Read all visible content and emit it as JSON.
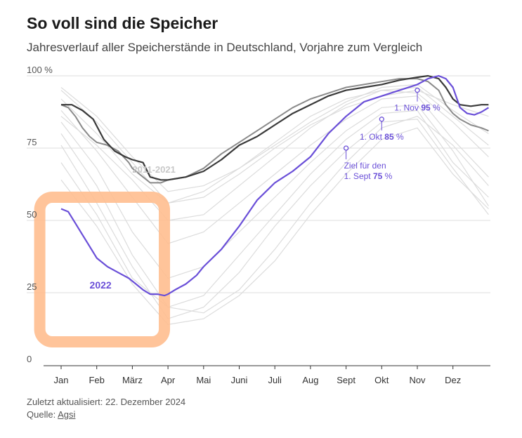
{
  "header": {
    "title": "So voll sind die Speicher",
    "subtitle": "Jahresverlauf aller Speicherstände in Deutschland, Vorjahre zum Vergleich"
  },
  "footer": {
    "updated": "Zuletzt aktualisiert: 22. Dezember 2024",
    "source_label": "Quelle: ",
    "source_link": "Agsi"
  },
  "colors": {
    "current_year": "#6a4fd8",
    "dark_year": "#3a3a3a",
    "mid_year": "#8a8a8a",
    "history": "#dcdcdc",
    "highlight_box": "#ffbe8f",
    "grid": "#dddddd",
    "axis_text": "#555555"
  },
  "chart_data": {
    "type": "line",
    "y_unit": "%",
    "ylim": [
      0,
      100
    ],
    "yticks": [
      "100 %",
      "75",
      "50",
      "25",
      "0"
    ],
    "ytick_values": [
      100,
      75,
      50,
      25,
      0
    ],
    "xlim": [
      0,
      12
    ],
    "months": [
      "Jan",
      "Feb",
      "März",
      "Apr",
      "Mai",
      "Juni",
      "Juli",
      "Aug",
      "Sept",
      "Okt",
      "Nov",
      "Dez"
    ],
    "grid": "horizontal",
    "history_label": "2011-2021",
    "series": [
      {
        "name": "2022",
        "role": "current",
        "x": [
          0.0,
          0.2,
          0.4,
          0.6,
          0.8,
          1.0,
          1.3,
          1.6,
          1.9,
          2.1,
          2.3,
          2.5,
          2.7,
          2.9,
          3.0,
          3.2,
          3.5,
          3.8,
          4.0,
          4.5,
          5.0,
          5.5,
          6.0,
          6.5,
          7.0,
          7.5,
          8.0,
          8.5,
          9.0,
          9.5,
          10.0,
          10.3,
          10.6,
          10.8,
          11.0,
          11.2,
          11.4,
          11.6,
          11.8,
          12.0
        ],
        "y": [
          54,
          53,
          49,
          45,
          41,
          37,
          34,
          32,
          30,
          28,
          26,
          24.5,
          24.5,
          24,
          24.5,
          26,
          28,
          31,
          34,
          40,
          48,
          57,
          63,
          67,
          72,
          80,
          86,
          91,
          93,
          95,
          97,
          99,
          100,
          99,
          96,
          89,
          87,
          86.5,
          87.5,
          89
        ]
      },
      {
        "name": "",
        "role": "dark",
        "x": [
          0.0,
          0.3,
          0.6,
          0.9,
          1.2,
          1.5,
          1.8,
          2.0,
          2.3,
          2.5,
          2.8,
          3.0,
          3.5,
          4.0,
          4.5,
          5.0,
          5.5,
          6.0,
          6.5,
          7.0,
          7.5,
          8.0,
          8.5,
          9.0,
          9.5,
          10.0,
          10.3,
          10.6,
          10.8,
          11.0,
          11.2,
          11.5,
          11.8,
          12.0
        ],
        "y": [
          90,
          90,
          88,
          85,
          78,
          74,
          72,
          71,
          70,
          65,
          64,
          64,
          65,
          67,
          71,
          76,
          79,
          83,
          87,
          90,
          93,
          95,
          96,
          97,
          98.5,
          99.5,
          100,
          99,
          96,
          92,
          90,
          89.5,
          90,
          90
        ]
      },
      {
        "name": "",
        "role": "mid",
        "x": [
          0.0,
          0.2,
          0.4,
          0.6,
          0.8,
          1.0,
          1.3,
          1.6,
          1.9,
          2.0,
          2.3,
          2.5,
          2.8,
          3.0,
          3.5,
          4.0,
          4.5,
          5.0,
          5.5,
          6.0,
          6.5,
          7.0,
          7.5,
          8.0,
          8.5,
          9.0,
          9.5,
          10.0,
          10.3,
          10.6,
          10.8,
          11.0,
          11.2,
          11.5,
          11.8,
          12.0
        ],
        "y": [
          90,
          89,
          86,
          82,
          79,
          77,
          76,
          74,
          70,
          68,
          65,
          63,
          63,
          64,
          65,
          68,
          73,
          77,
          81,
          85,
          89,
          92,
          94,
          96,
          97,
          98,
          99,
          99,
          98,
          95,
          90,
          87,
          85,
          83,
          82,
          81
        ]
      },
      {
        "name": "",
        "role": "history",
        "x": [
          0,
          1,
          2,
          3,
          4,
          5,
          6,
          7,
          8,
          9,
          10,
          11,
          12
        ],
        "y": [
          96,
          86,
          72,
          60,
          62,
          68,
          76,
          84,
          91,
          96,
          97,
          88,
          80
        ]
      },
      {
        "name": "",
        "role": "history",
        "x": [
          0,
          1,
          2,
          3,
          4,
          5,
          6,
          7,
          8,
          9,
          10,
          11,
          12
        ],
        "y": [
          92,
          80,
          66,
          56,
          60,
          68,
          77,
          86,
          92,
          95,
          94,
          84,
          72
        ]
      },
      {
        "name": "",
        "role": "history",
        "x": [
          0,
          1,
          2,
          3,
          4,
          5,
          6,
          7,
          8,
          9,
          10,
          11,
          12
        ],
        "y": [
          88,
          74,
          58,
          42,
          46,
          56,
          66,
          76,
          85,
          92,
          93,
          78,
          65
        ]
      },
      {
        "name": "",
        "role": "history",
        "x": [
          0,
          1,
          2,
          3,
          4,
          5,
          6,
          7,
          8,
          9,
          10,
          11,
          12
        ],
        "y": [
          84,
          68,
          46,
          30,
          34,
          46,
          58,
          70,
          81,
          89,
          90,
          74,
          55
        ]
      },
      {
        "name": "",
        "role": "history",
        "x": [
          0,
          1,
          2,
          3,
          4,
          5,
          6,
          7,
          8,
          9,
          10,
          11,
          12
        ],
        "y": [
          80,
          62,
          38,
          20,
          24,
          38,
          52,
          66,
          78,
          87,
          88,
          70,
          58
        ]
      },
      {
        "name": "",
        "role": "history",
        "x": [
          0,
          1,
          2,
          3,
          4,
          5,
          6,
          7,
          8,
          9,
          10,
          11,
          12
        ],
        "y": [
          76,
          56,
          34,
          16,
          20,
          32,
          48,
          62,
          74,
          84,
          85,
          68,
          52
        ]
      },
      {
        "name": "",
        "role": "history",
        "x": [
          0,
          1,
          2,
          3,
          4,
          5,
          6,
          7,
          8,
          9,
          10,
          11,
          12
        ],
        "y": [
          70,
          52,
          30,
          20,
          18,
          26,
          40,
          56,
          70,
          82,
          86,
          76,
          62
        ]
      },
      {
        "name": "",
        "role": "history",
        "x": [
          0,
          1,
          2,
          3,
          4,
          5,
          6,
          7,
          8,
          9,
          10,
          11,
          12
        ],
        "y": [
          64,
          48,
          28,
          14,
          16,
          24,
          36,
          52,
          66,
          78,
          82,
          66,
          54
        ]
      },
      {
        "name": "",
        "role": "history",
        "x": [
          0,
          1,
          2,
          3,
          4,
          5,
          6,
          7,
          8,
          9,
          10,
          11,
          12
        ],
        "y": [
          95,
          84,
          70,
          56,
          58,
          66,
          75,
          83,
          89,
          93,
          95,
          90,
          86
        ]
      },
      {
        "name": "",
        "role": "history",
        "x": [
          0,
          1,
          2,
          3,
          4,
          5,
          6,
          7,
          8,
          9,
          10,
          11,
          12
        ],
        "y": [
          86,
          76,
          64,
          50,
          52,
          62,
          72,
          82,
          90,
          95,
          96,
          86,
          76
        ]
      }
    ],
    "annotations": [
      {
        "label": "2022",
        "x": 1.0,
        "y": 25,
        "style": "series-label"
      },
      {
        "line1": "Ziel für den",
        "line2_prefix": "1. Sept ",
        "value": "75",
        "unit": " %",
        "x": 8.0,
        "y": 75
      },
      {
        "line2_prefix": "1. Okt ",
        "value": "85",
        "unit": " %",
        "x": 9.0,
        "y": 85
      },
      {
        "line2_prefix": "1. Nov ",
        "value": "95",
        "unit": " %",
        "x": 10.0,
        "y": 95
      }
    ],
    "highlight": {
      "x_range": [
        -0.6,
        2.9
      ],
      "y_range": [
        8,
        58
      ]
    }
  }
}
